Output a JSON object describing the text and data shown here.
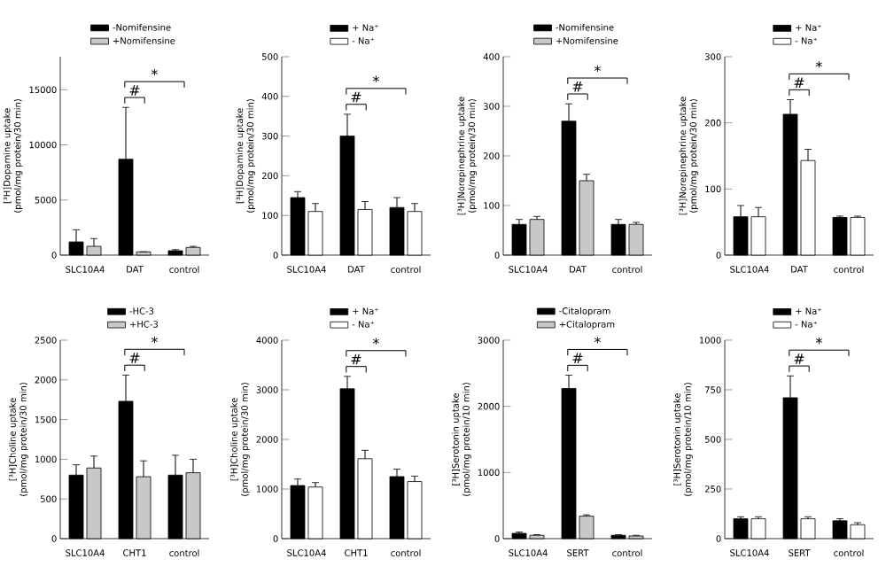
{
  "chart_data": [
    {
      "type": "bar",
      "categories": [
        "SLC10A4",
        "DAT",
        "control"
      ],
      "ylabel": "[³H]Dopamine uptake (pmol/mg protein/30 min)",
      "ylim": [
        0,
        18000
      ],
      "yticks": [
        0,
        5000,
        10000,
        15000
      ],
      "legend": "top",
      "annotations": [
        "*",
        "#"
      ],
      "series": [
        {
          "name": "-Nomifensine",
          "color": "#000000",
          "values": [
            1200,
            8700,
            400
          ],
          "errors": [
            1100,
            4700,
            100
          ]
        },
        {
          "name": "+Nomifensine",
          "color": "#c8c8c8",
          "values": [
            800,
            300,
            700
          ],
          "errors": [
            700,
            0,
            100
          ]
        }
      ]
    },
    {
      "type": "bar",
      "categories": [
        "SLC10A4",
        "DAT",
        "control"
      ],
      "ylabel": "[³H]Dopamine uptake (pmol/mg protein/30 min)",
      "ylim": [
        0,
        500
      ],
      "yticks": [
        0,
        100,
        200,
        300,
        400,
        500
      ],
      "legend": "top",
      "annotations": [
        "*",
        "#"
      ],
      "series": [
        {
          "name": "+ Na⁺",
          "color": "#000000",
          "values": [
            145,
            300,
            120
          ],
          "errors": [
            15,
            55,
            25
          ]
        },
        {
          "name": "- Na⁺",
          "color": "#ffffff",
          "values": [
            110,
            115,
            110
          ],
          "errors": [
            20,
            20,
            20
          ]
        }
      ]
    },
    {
      "type": "bar",
      "categories": [
        "SLC10A4",
        "DAT",
        "control"
      ],
      "ylabel": "[³H]Norepinephrine uptake (pmol/mg protein/30 min)",
      "ylim": [
        0,
        400
      ],
      "yticks": [
        0,
        100,
        200,
        300,
        400
      ],
      "legend": "top",
      "annotations": [
        "*",
        "#"
      ],
      "series": [
        {
          "name": "-Nomifensine",
          "color": "#000000",
          "values": [
            62,
            270,
            62
          ],
          "errors": [
            10,
            35,
            10
          ]
        },
        {
          "name": "+Nomifensine",
          "color": "#c8c8c8",
          "values": [
            72,
            150,
            62
          ],
          "errors": [
            6,
            13,
            4
          ]
        }
      ]
    },
    {
      "type": "bar",
      "categories": [
        "SLC10A4",
        "DAT",
        "control"
      ],
      "ylabel": "[³H]Norepinephrine uptake (pmol/mg protein/30 min)",
      "ylim": [
        0,
        300
      ],
      "yticks": [
        0,
        100,
        200,
        300
      ],
      "legend": "top",
      "annotations": [
        "*",
        "#"
      ],
      "series": [
        {
          "name": "+ Na⁺",
          "color": "#000000",
          "values": [
            58,
            213,
            57
          ],
          "errors": [
            17,
            22,
            2
          ]
        },
        {
          "name": "- Na⁺",
          "color": "#ffffff",
          "values": [
            58,
            143,
            57
          ],
          "errors": [
            14,
            17,
            2
          ]
        }
      ]
    },
    {
      "type": "bar",
      "categories": [
        "SLC10A4",
        "CHT1",
        "control"
      ],
      "ylabel": "[³H]Choline uptake (pmol/mg protein/30 min)",
      "ylim": [
        0,
        2500
      ],
      "yticks": [
        0,
        500,
        1000,
        1500,
        2000,
        2500
      ],
      "legend": "top",
      "annotations": [
        "*",
        "#"
      ],
      "series": [
        {
          "name": "-HC-3",
          "color": "#000000",
          "values": [
            800,
            1730,
            800
          ],
          "errors": [
            130,
            330,
            250
          ]
        },
        {
          "name": "+HC-3",
          "color": "#c8c8c8",
          "values": [
            890,
            780,
            830
          ],
          "errors": [
            150,
            200,
            170
          ]
        }
      ]
    },
    {
      "type": "bar",
      "categories": [
        "SLC10A4",
        "CHT1",
        "control"
      ],
      "ylabel": "[³H]Choline uptake (pmol/mg protein/30 min)",
      "ylim": [
        0,
        4000
      ],
      "yticks": [
        0,
        1000,
        2000,
        3000,
        4000
      ],
      "legend": "top",
      "annotations": [
        "*",
        "#"
      ],
      "series": [
        {
          "name": "+ Na⁺",
          "color": "#000000",
          "values": [
            1070,
            3020,
            1250
          ],
          "errors": [
            130,
            250,
            150
          ]
        },
        {
          "name": "- Na⁺",
          "color": "#ffffff",
          "values": [
            1040,
            1610,
            1150
          ],
          "errors": [
            90,
            170,
            110
          ]
        }
      ]
    },
    {
      "type": "bar",
      "categories": [
        "SLC10A4",
        "SERT",
        "control"
      ],
      "ylabel": "[³H]Serotonin uptake (pmol/mg protein/10 min)",
      "ylim": [
        0,
        3000
      ],
      "yticks": [
        0,
        1000,
        2000,
        3000
      ],
      "legend": "top",
      "annotations": [
        "*",
        "#"
      ],
      "series": [
        {
          "name": "-Citalopram",
          "color": "#000000",
          "values": [
            80,
            2270,
            50
          ],
          "errors": [
            20,
            200,
            10
          ]
        },
        {
          "name": "+Citalopram",
          "color": "#c8c8c8",
          "values": [
            50,
            340,
            40
          ],
          "errors": [
            10,
            20,
            10
          ]
        }
      ]
    },
    {
      "type": "bar",
      "categories": [
        "SLC10A4",
        "SERT",
        "control"
      ],
      "ylabel": "[³H]Serotonin uptake (pmol/mg protein/10 min)",
      "ylim": [
        0,
        1000
      ],
      "yticks": [
        0,
        250,
        500,
        750,
        1000
      ],
      "legend": "top",
      "annotations": [
        "*",
        "#"
      ],
      "series": [
        {
          "name": "+ Na⁺",
          "color": "#000000",
          "values": [
            100,
            710,
            90
          ],
          "errors": [
            10,
            110,
            10
          ]
        },
        {
          "name": "- Na⁺",
          "color": "#ffffff",
          "values": [
            100,
            100,
            70
          ],
          "errors": [
            10,
            10,
            10
          ]
        }
      ]
    }
  ]
}
